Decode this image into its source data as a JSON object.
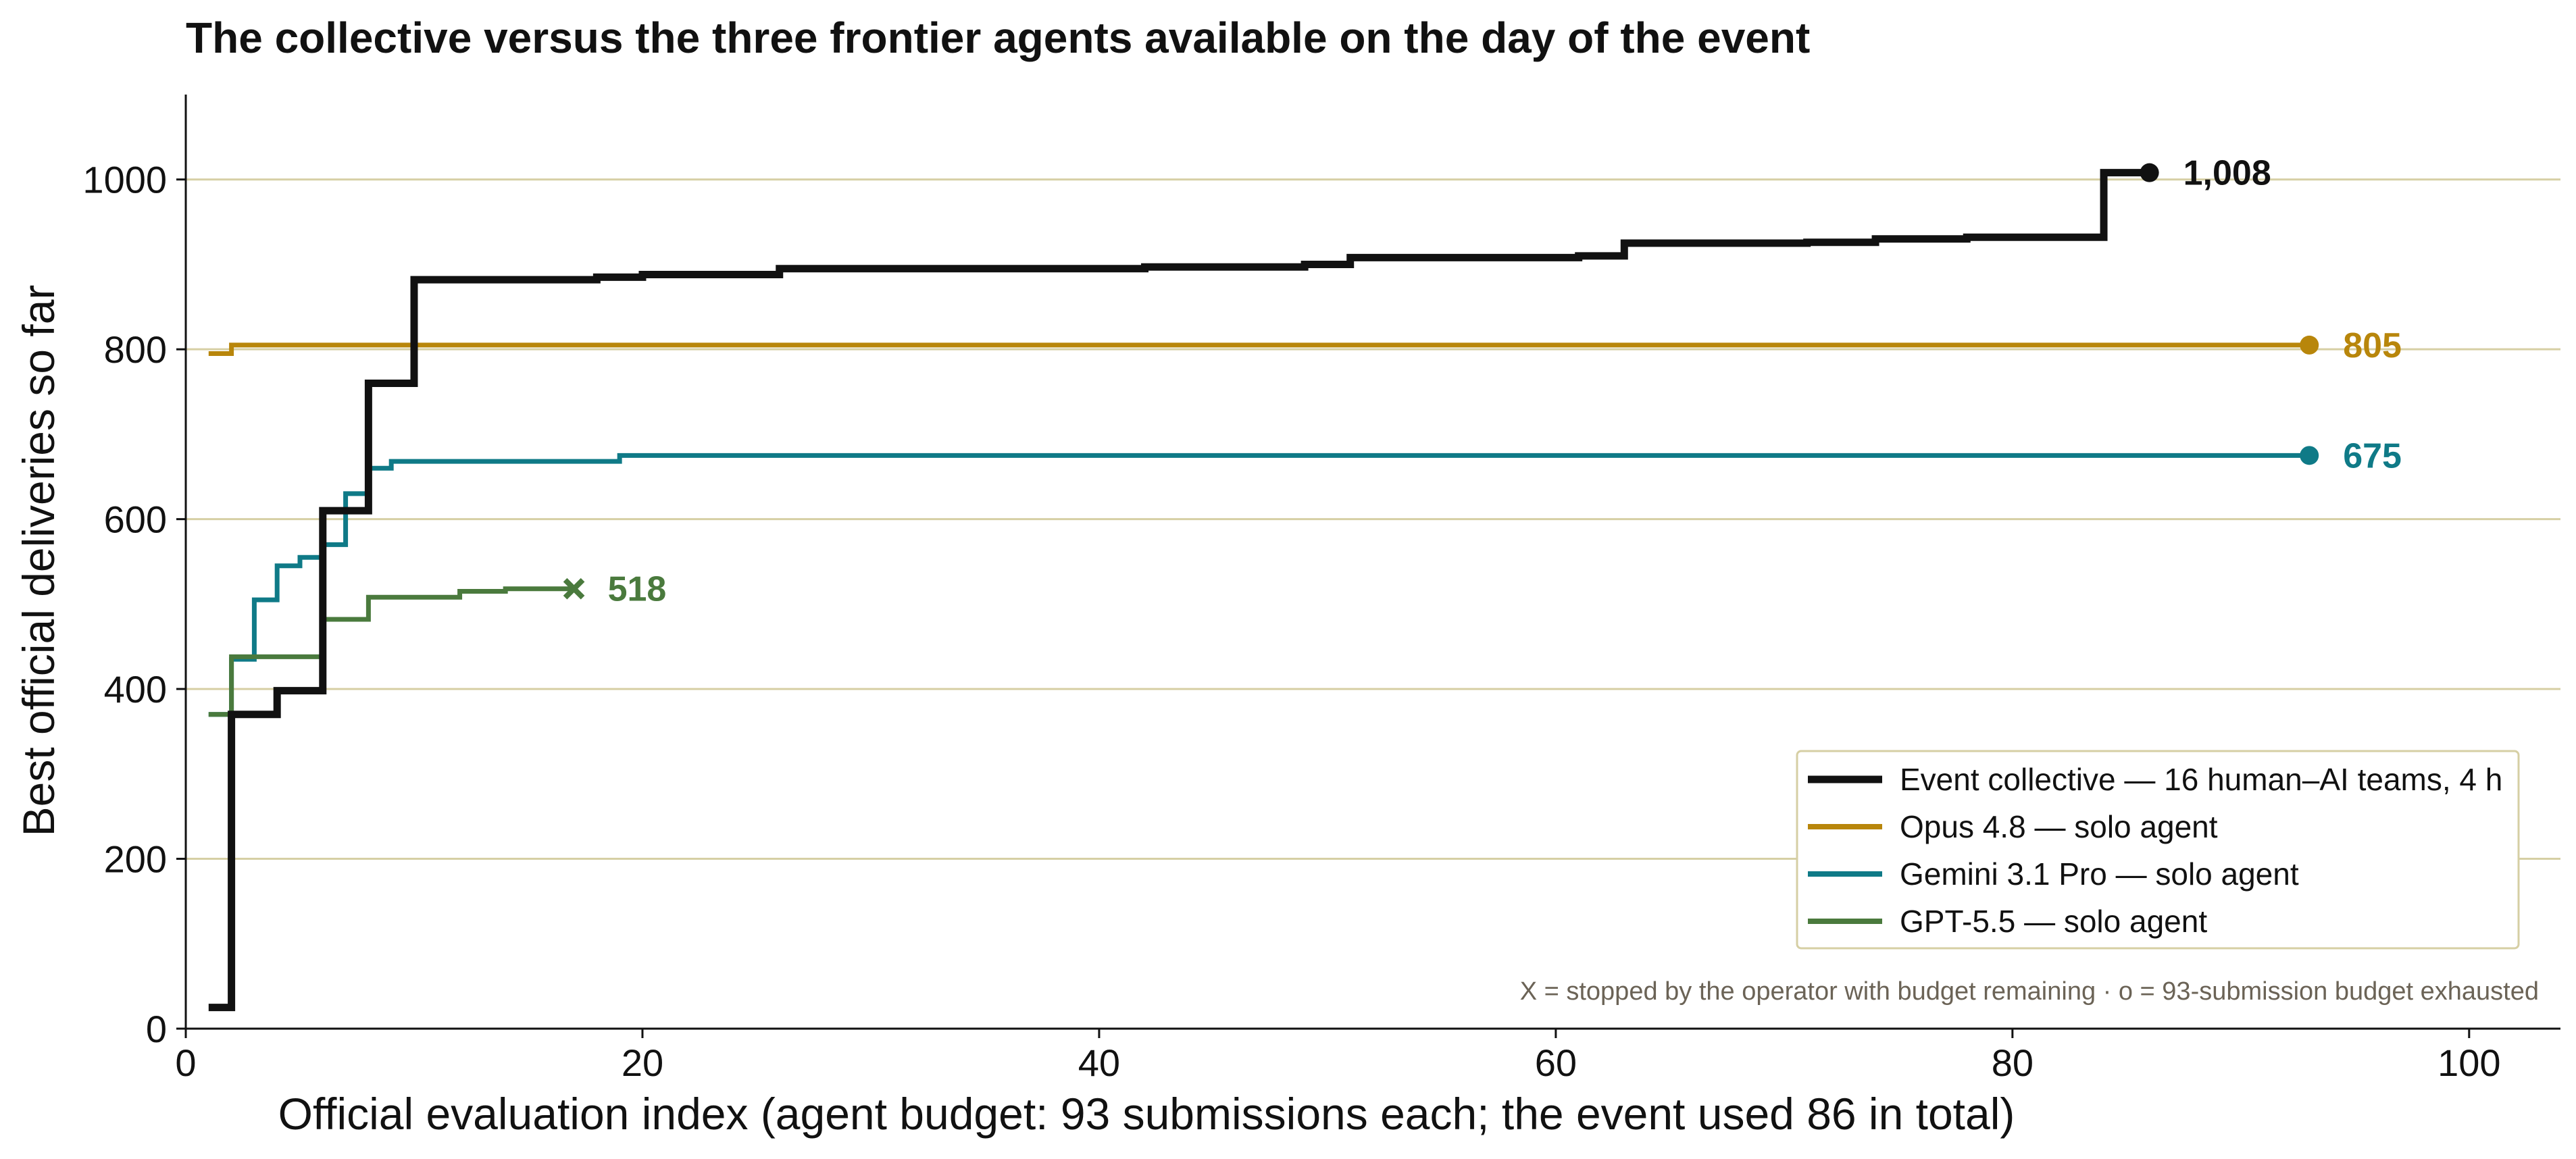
{
  "chart_data": {
    "type": "line",
    "step": true,
    "title": "The collective versus the three frontier agents available on the day of the event",
    "xlabel": "Official evaluation index (agent budget: 93 submissions each; the event used 86 in total)",
    "ylabel": "Best official deliveries so far",
    "xlim": [
      0,
      104
    ],
    "ylim": [
      0,
      1100
    ],
    "xticks": [
      0,
      20,
      40,
      60,
      80,
      100
    ],
    "yticks": [
      0,
      200,
      400,
      600,
      800,
      1000
    ],
    "grid": "horizontal",
    "legend_position": "lower-right",
    "footnote": "X = stopped by the operator with budget remaining  ·  o = 93-submission budget exhausted",
    "series": [
      {
        "name": "Event collective — 16 human–AI teams, 4 h",
        "color": "#111111",
        "marker": "o",
        "end_label": "1,008",
        "x": [
          1,
          2,
          4,
          6,
          8,
          10,
          18,
          20,
          26,
          42,
          49,
          51,
          61,
          63,
          71,
          74,
          78,
          84,
          86
        ],
        "y": [
          25,
          370,
          398,
          610,
          760,
          882,
          885,
          888,
          895,
          897,
          900,
          908,
          910,
          925,
          926,
          930,
          932,
          1008,
          1008
        ]
      },
      {
        "name": "Opus 4.8 — solo agent",
        "color": "#b8860b",
        "marker": "o",
        "end_label": "805",
        "x": [
          1,
          2,
          93
        ],
        "y": [
          795,
          805,
          805
        ]
      },
      {
        "name": "Gemini 3.1 Pro — solo agent",
        "color": "#0f7a87",
        "marker": "o",
        "end_label": "675",
        "x": [
          1,
          2,
          3,
          4,
          5,
          6,
          7,
          8,
          9,
          19,
          93
        ],
        "y": [
          370,
          435,
          505,
          545,
          555,
          570,
          630,
          660,
          668,
          675,
          675
        ]
      },
      {
        "name": "GPT-5.5 — solo agent",
        "color": "#4a7a3d",
        "marker": "x",
        "end_label": "518",
        "x": [
          1,
          2,
          6,
          8,
          12,
          14,
          17
        ],
        "y": [
          370,
          438,
          482,
          508,
          515,
          518,
          518
        ]
      }
    ]
  }
}
